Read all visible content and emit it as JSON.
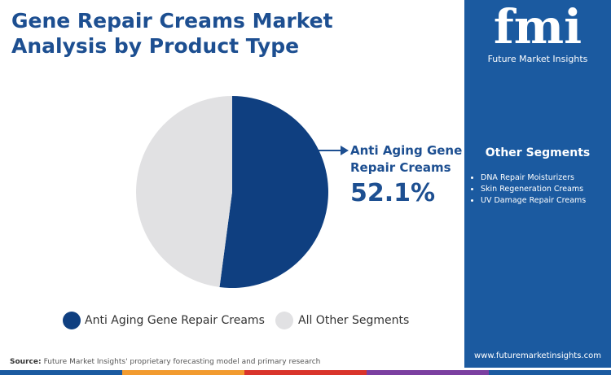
{
  "header": {
    "title": "Gene Repair Creams Market Analysis by Product Type"
  },
  "logo": {
    "mark": "fmi",
    "name": "Future Market Insights"
  },
  "chart_data": {
    "type": "pie",
    "categories": [
      "Anti Aging Gene Repair Creams",
      "All Other Segments"
    ],
    "values": [
      52.1,
      47.9
    ],
    "value_labels": [
      "52.1%",
      null
    ],
    "colors": [
      "#0f3f80",
      "#e1e1e3"
    ]
  },
  "sidebar": {
    "title": "Other Segments",
    "items": [
      "DNA Repair Moisturizers",
      "Skin Regeneration Creams",
      "UV Damage Repair Creams"
    ]
  },
  "footer": {
    "source_label": "Source:",
    "source_text": "Future Market Insights' proprietary forecasting model and primary research",
    "website": "www.futuremarketinsights.com"
  }
}
